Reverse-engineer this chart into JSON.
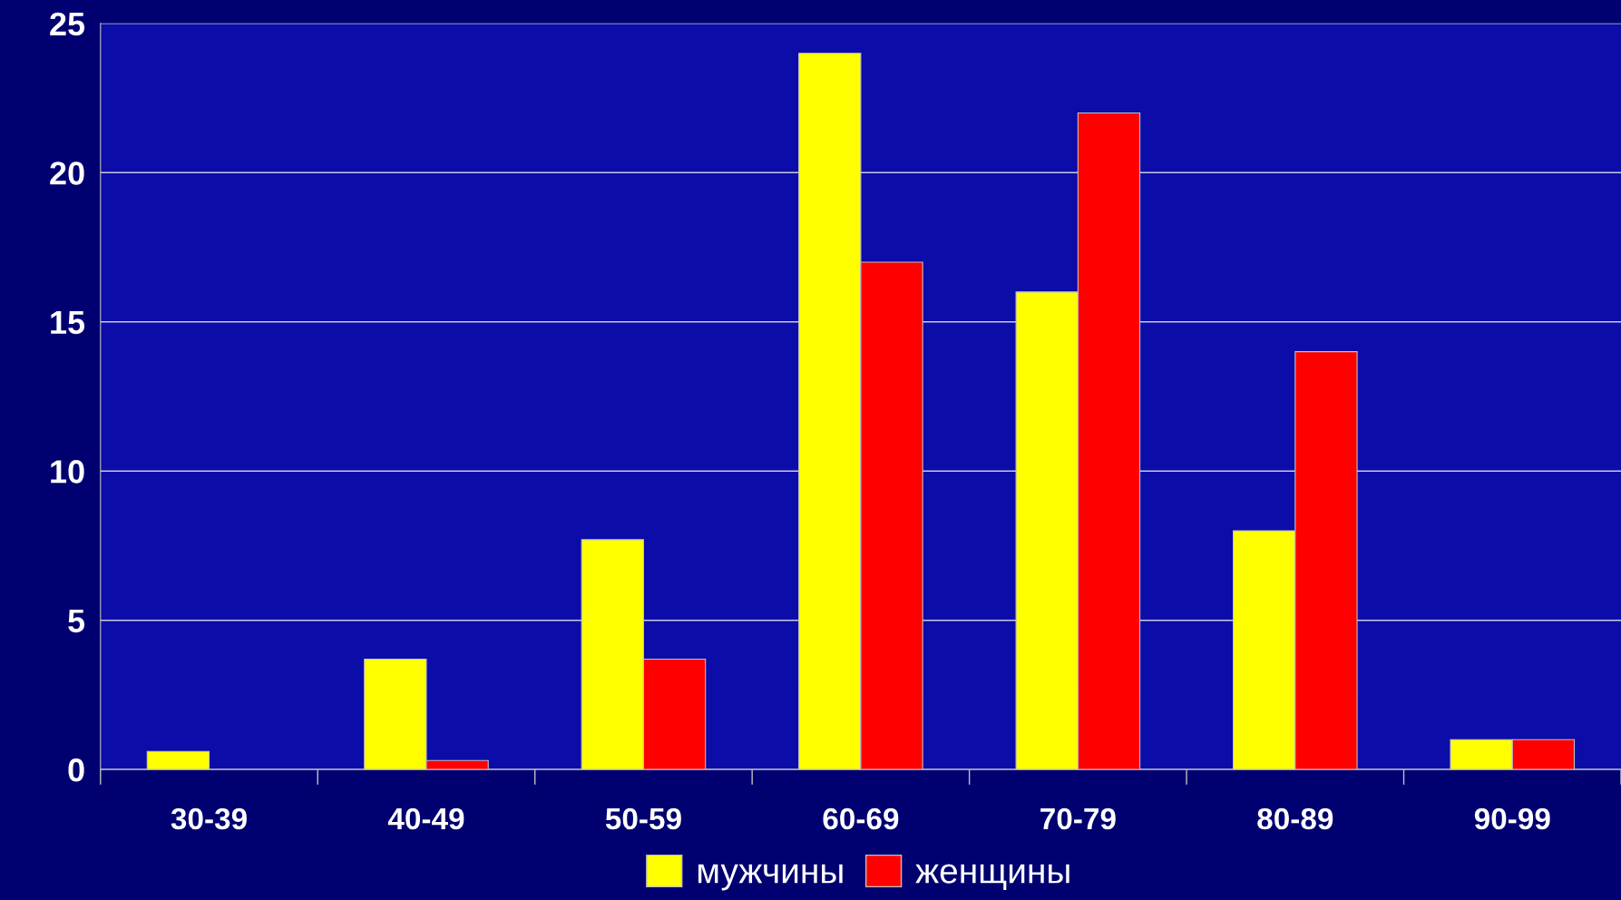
{
  "chart_data": {
    "type": "bar",
    "categories": [
      "30-39",
      "40-49",
      "50-59",
      "60-69",
      "70-79",
      "80-89",
      "90-99"
    ],
    "series": [
      {
        "name": "мужчины",
        "color": "#ffff00",
        "values": [
          0.6,
          3.7,
          7.7,
          24,
          16,
          8,
          1
        ]
      },
      {
        "name": "женщины",
        "color": "#ff0000",
        "values": [
          null,
          0.3,
          3.7,
          17,
          22,
          14,
          1
        ]
      }
    ],
    "ylim": [
      0,
      25
    ],
    "yticks": [
      0,
      5,
      10,
      15,
      20,
      25
    ],
    "grid": "y",
    "legend": "bottom"
  }
}
